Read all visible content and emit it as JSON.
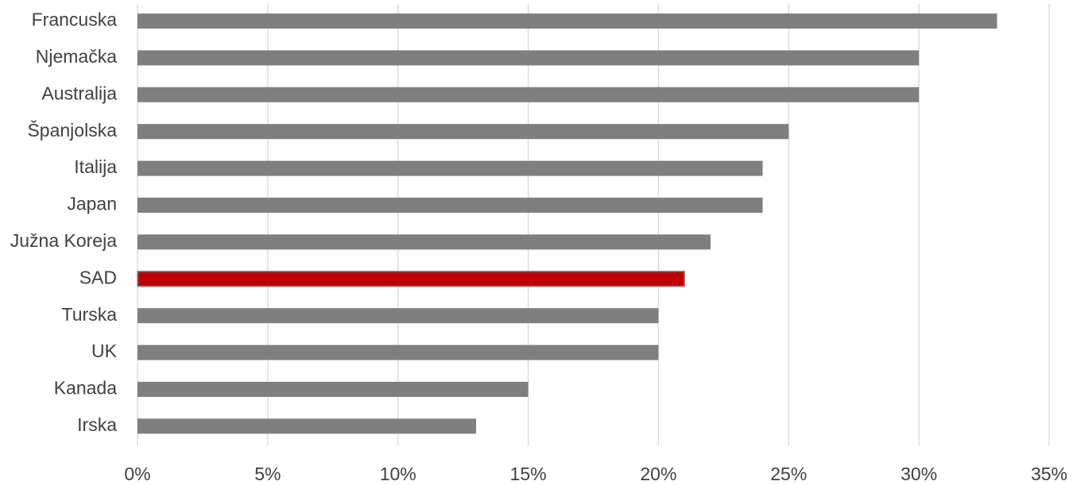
{
  "chart_data": {
    "type": "bar",
    "orientation": "horizontal",
    "title": "",
    "xlabel": "",
    "ylabel": "",
    "categories": [
      "Francuska",
      "Njemačka",
      "Australija",
      "Španjolska",
      "Italija",
      "Japan",
      "Južna Koreja",
      "SAD",
      "Turska",
      "UK",
      "Kanada",
      "Irska"
    ],
    "values": [
      33,
      30,
      30,
      25,
      24,
      24,
      22,
      21,
      20,
      20,
      15,
      13
    ],
    "xlim": [
      0,
      35
    ],
    "x_ticks": [
      0,
      5,
      10,
      15,
      20,
      25,
      30,
      35
    ],
    "x_tick_labels": [
      "0%",
      "5%",
      "10%",
      "15%",
      "20%",
      "25%",
      "30%",
      "35%"
    ],
    "grid": "vertical",
    "legend": "none",
    "colors": {
      "default_bar": "#7f7f7f",
      "highlight_bar": "#c00000",
      "highlight_outline": "#8c8c8c",
      "gridline": "#d9d9d9",
      "text": "#404040"
    },
    "highlight_category": "SAD"
  }
}
